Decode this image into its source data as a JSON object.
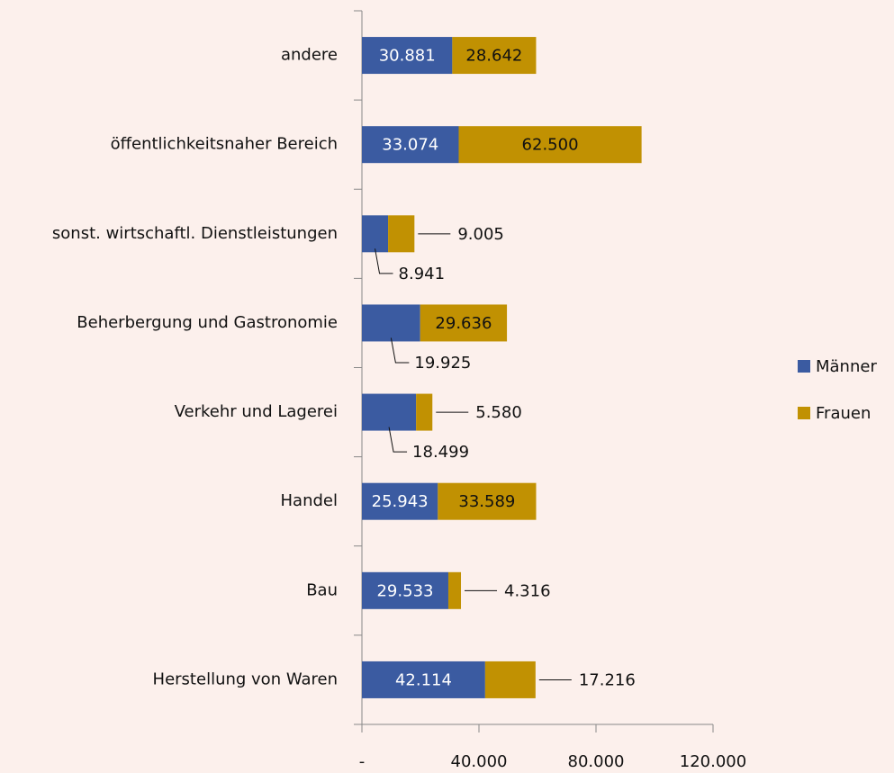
{
  "chart_data": {
    "type": "stacked-bar-horizontal",
    "categories": [
      "andere",
      "öffentlichkeitsnaher Bereich",
      "sonst. wirtschaftl. Dienstleistungen",
      "Beherbergung und Gastronomie",
      "Verkehr und Lagerei",
      "Handel",
      "Bau",
      "Herstellung von Waren"
    ],
    "series": [
      {
        "name": "Männer",
        "color": "#3b5ba1",
        "values": [
          30881,
          33074,
          8941,
          19925,
          18499,
          25943,
          29533,
          42114
        ],
        "value_labels": [
          "30.881",
          "33.074",
          "8.941",
          "19.925",
          "18.499",
          "25.943",
          "29.533",
          "42.114"
        ]
      },
      {
        "name": "Frauen",
        "color": "#c19102",
        "values": [
          28642,
          62500,
          9005,
          29636,
          5580,
          33589,
          4316,
          17216
        ],
        "value_labels": [
          "28.642",
          "62.500",
          "9.005",
          "29.636",
          "5.580",
          "33.589",
          "4.316",
          "17.216"
        ]
      }
    ],
    "xlim": [
      0,
      120000
    ],
    "xticks": [
      {
        "value": 0,
        "label": "-"
      },
      {
        "value": 40000,
        "label": "40.000"
      },
      {
        "value": 80000,
        "label": "80.000"
      },
      {
        "value": 120000,
        "label": "120.000"
      }
    ],
    "legend": "right"
  }
}
